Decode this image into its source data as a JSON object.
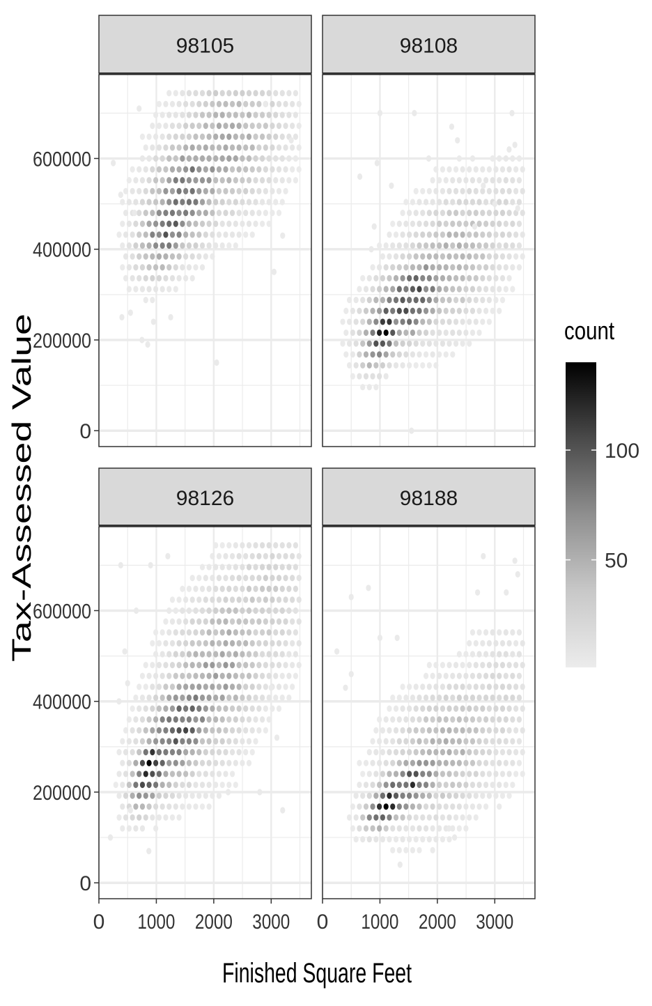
{
  "chart_data": {
    "type": "heatmap",
    "subtype": "faceted hexbin",
    "xlabel": "Finished Square Feet",
    "ylabel": "Tax-Assessed Value",
    "xlim": [
      0,
      3700
    ],
    "ylim": [
      -35000,
      785000
    ],
    "x_ticks": [
      0,
      1000,
      2000,
      3000
    ],
    "x_tick_labels": [
      "0",
      "1000",
      "2000",
      "3000"
    ],
    "y_ticks": [
      0,
      200000,
      400000,
      600000
    ],
    "y_tick_labels": [
      "0",
      "200000",
      "400000",
      "600000"
    ],
    "grid": true,
    "legend": {
      "title": "count",
      "position": "right",
      "range": [
        1,
        140
      ],
      "breaks": [
        50,
        100
      ],
      "break_labels": [
        "50",
        "100"
      ],
      "colors": {
        "low": "#ececec",
        "high": "#000000"
      }
    },
    "facets": [
      {
        "label": "98105",
        "clusters": [
          {
            "x": 1200,
            "y": 450000,
            "sx": 300,
            "sy": 60000,
            "rho": 0.4,
            "peak": 80
          },
          {
            "x": 1550,
            "y": 530000,
            "sx": 450,
            "sy": 85000,
            "rho": 0.45,
            "peak": 68
          },
          {
            "x": 2200,
            "y": 630000,
            "sx": 600,
            "sy": 100000,
            "rho": 0.3,
            "peak": 38
          }
        ],
        "bounds": {
          "xmin": 180,
          "xmax": 3500,
          "ymin": 130000,
          "ymax": 760000
        },
        "scatter": [
          [
            250,
            590
          ],
          [
            380,
            520
          ],
          [
            550,
            260
          ],
          [
            700,
            710
          ],
          [
            750,
            200
          ],
          [
            850,
            190
          ],
          [
            1250,
            250
          ],
          [
            2050,
            150
          ],
          [
            3200,
            430
          ],
          [
            3050,
            350
          ],
          [
            400,
            250
          ],
          [
            620,
            480
          ],
          [
            950,
            240
          ],
          [
            2900,
            720
          ],
          [
            3350,
            640
          ]
        ]
      },
      {
        "label": "98108",
        "clusters": [
          {
            "x": 1050,
            "y": 220000,
            "sx": 200,
            "sy": 45000,
            "rho": 0.45,
            "peak": 125
          },
          {
            "x": 1500,
            "y": 285000,
            "sx": 420,
            "sy": 60000,
            "rho": 0.5,
            "peak": 95
          },
          {
            "x": 2200,
            "y": 370000,
            "sx": 580,
            "sy": 95000,
            "rho": 0.4,
            "peak": 35
          },
          {
            "x": 3100,
            "y": 460000,
            "sx": 300,
            "sy": 80000,
            "rho": 0.2,
            "peak": 14
          }
        ],
        "bounds": {
          "xmin": 250,
          "xmax": 3520,
          "ymin": 70000,
          "ymax": 600000
        },
        "scatter": [
          [
            650,
            560
          ],
          [
            950,
            590
          ],
          [
            1000,
            700
          ],
          [
            1600,
            700
          ],
          [
            1550,
            0
          ],
          [
            2250,
            670
          ],
          [
            2350,
            640
          ],
          [
            3250,
            620
          ],
          [
            3350,
            630
          ],
          [
            3300,
            700
          ],
          [
            3400,
            490
          ],
          [
            900,
            450
          ],
          [
            850,
            400
          ],
          [
            1850,
            600
          ],
          [
            2650,
            450
          ],
          [
            3000,
            500
          ],
          [
            2800,
            540
          ],
          [
            1200,
            540
          ]
        ]
      },
      {
        "label": "98126",
        "clusters": [
          {
            "x": 900,
            "y": 250000,
            "sx": 200,
            "sy": 50000,
            "rho": 0.5,
            "peak": 130
          },
          {
            "x": 1400,
            "y": 340000,
            "sx": 400,
            "sy": 80000,
            "rho": 0.5,
            "peak": 85
          },
          {
            "x": 2000,
            "y": 450000,
            "sx": 550,
            "sy": 120000,
            "rho": 0.45,
            "peak": 45
          },
          {
            "x": 2800,
            "y": 600000,
            "sx": 500,
            "sy": 120000,
            "rho": 0.3,
            "peak": 20
          }
        ],
        "bounds": {
          "xmin": 200,
          "xmax": 3520,
          "ymin": 60000,
          "ymax": 760000
        },
        "scatter": [
          [
            380,
            700
          ],
          [
            900,
            700
          ],
          [
            650,
            600
          ],
          [
            1200,
            720
          ],
          [
            3200,
            160
          ],
          [
            870,
            70
          ],
          [
            450,
            510
          ],
          [
            500,
            440
          ],
          [
            350,
            400
          ],
          [
            3000,
            430
          ],
          [
            3100,
            320
          ],
          [
            2800,
            200
          ],
          [
            550,
            160
          ],
          [
            2250,
            200
          ],
          [
            200,
            100
          ]
        ]
      },
      {
        "label": "98188",
        "clusters": [
          {
            "x": 1100,
            "y": 170000,
            "sx": 200,
            "sy": 30000,
            "rho": 0.5,
            "peak": 140
          },
          {
            "x": 1500,
            "y": 215000,
            "sx": 380,
            "sy": 45000,
            "rho": 0.55,
            "peak": 95
          },
          {
            "x": 2100,
            "y": 290000,
            "sx": 600,
            "sy": 90000,
            "rho": 0.4,
            "peak": 35
          },
          {
            "x": 3000,
            "y": 380000,
            "sx": 400,
            "sy": 110000,
            "rho": 0.2,
            "peak": 14
          }
        ],
        "bounds": {
          "xmin": 300,
          "xmax": 3520,
          "ymin": 60000,
          "ymax": 560000
        },
        "scatter": [
          [
            800,
            650
          ],
          [
            500,
            630
          ],
          [
            250,
            510
          ],
          [
            1000,
            540
          ],
          [
            1300,
            540
          ],
          [
            2800,
            720
          ],
          [
            3350,
            710
          ],
          [
            3400,
            680
          ],
          [
            3200,
            640
          ],
          [
            2700,
            640
          ],
          [
            1350,
            40
          ],
          [
            2200,
            120
          ],
          [
            2300,
            100
          ],
          [
            500,
            460
          ],
          [
            400,
            430
          ]
        ]
      }
    ]
  }
}
